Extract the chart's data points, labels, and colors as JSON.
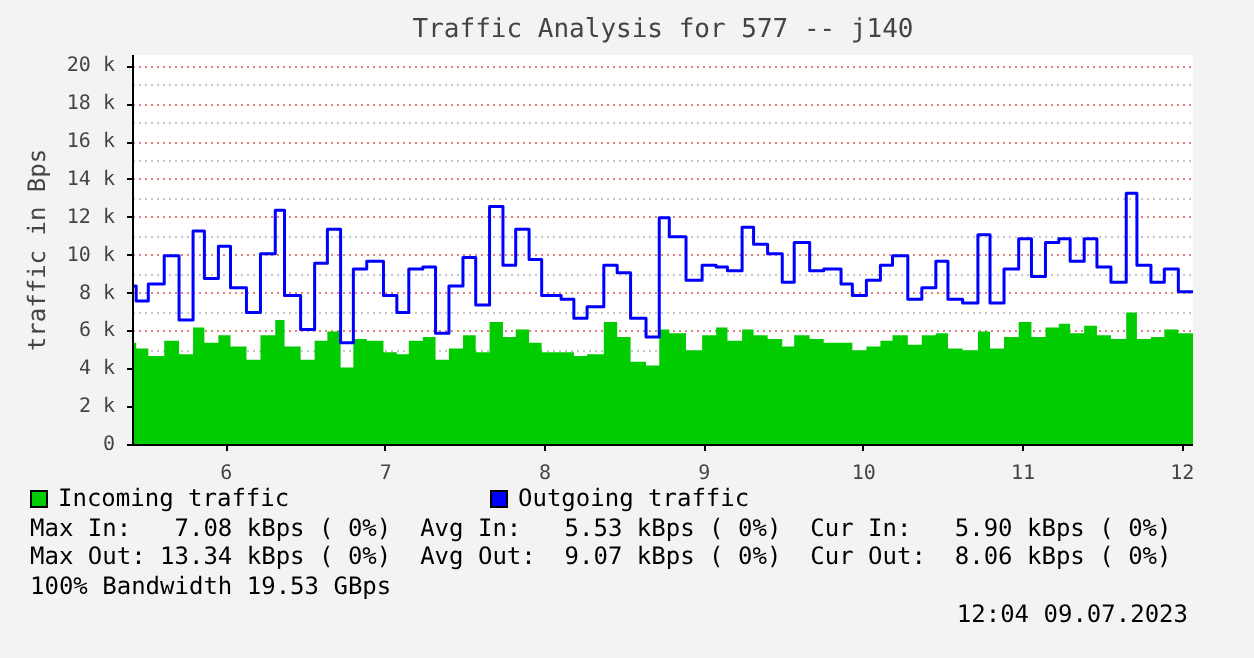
{
  "chart_data": {
    "type": "area",
    "title": "Traffic Analysis for 577 -- j140",
    "ylabel": "traffic in Bps",
    "x": [
      5.414,
      5.434,
      5.51,
      5.61,
      5.703,
      5.791,
      5.862,
      5.95,
      6.026,
      6.126,
      6.214,
      6.307,
      6.365,
      6.466,
      6.554,
      6.634,
      6.717,
      6.797,
      6.881,
      6.986,
      7.07,
      7.145,
      7.233,
      7.313,
      7.397,
      7.485,
      7.565,
      7.652,
      7.736,
      7.816,
      7.9,
      7.979,
      8.101,
      8.181,
      8.264,
      8.369,
      8.453,
      8.537,
      8.634,
      8.717,
      8.78,
      8.885,
      8.986,
      9.074,
      9.145,
      9.237,
      9.309,
      9.397,
      9.489,
      9.564,
      9.661,
      9.749,
      9.858,
      9.929,
      10.017,
      10.105,
      10.181,
      10.277,
      10.365,
      10.453,
      10.529,
      10.621,
      10.717,
      10.793,
      10.881,
      10.973,
      11.053,
      11.141,
      11.225,
      11.296,
      11.384,
      11.464,
      11.552,
      11.648,
      11.715,
      11.803,
      11.887,
      11.975,
      12.067
    ],
    "series": [
      {
        "name": "Incoming traffic",
        "color": "#00cc00",
        "values": [
          5400,
          5100,
          4700,
          5500,
          4800,
          6200,
          5400,
          5800,
          5200,
          4500,
          5800,
          6600,
          5200,
          4500,
          5500,
          6000,
          4100,
          5600,
          5500,
          4900,
          4800,
          5500,
          5700,
          4500,
          5100,
          5800,
          4900,
          6500,
          5700,
          6100,
          5400,
          4900,
          4900,
          4700,
          4800,
          6500,
          5700,
          4400,
          4200,
          6100,
          5900,
          5000,
          5800,
          6200,
          5500,
          6100,
          5800,
          5600,
          5200,
          5800,
          5600,
          5400,
          5400,
          5000,
          5200,
          5500,
          5800,
          5300,
          5800,
          5900,
          5100,
          5000,
          6000,
          5100,
          5700,
          6500,
          5700,
          6200,
          6400,
          5900,
          6300,
          5800,
          5600,
          7000,
          5600,
          5700,
          6100,
          5900,
          5900
        ]
      },
      {
        "name": "Outgoing traffic",
        "type": "step",
        "color": "#0000ff",
        "values": [
          8400,
          7600,
          8500,
          10000,
          6600,
          11300,
          8800,
          10500,
          8300,
          7000,
          10100,
          12400,
          7900,
          6100,
          9600,
          11400,
          5400,
          9300,
          9700,
          7900,
          7000,
          9300,
          9400,
          5900,
          8400,
          9900,
          7400,
          12600,
          9500,
          11400,
          9800,
          7900,
          7700,
          6700,
          7300,
          9500,
          9100,
          6700,
          5700,
          12000,
          11000,
          8700,
          9500,
          9400,
          9200,
          11500,
          10600,
          10100,
          8600,
          10700,
          9200,
          9300,
          8500,
          7900,
          8700,
          9500,
          10000,
          7700,
          8300,
          9700,
          7700,
          7500,
          11100,
          7500,
          9300,
          10900,
          8900,
          10700,
          10900,
          9700,
          10900,
          9400,
          8600,
          13300,
          9500,
          8600,
          9300,
          8100,
          8100
        ]
      }
    ],
    "xlim": [
      5.414,
      12.067
    ],
    "xticks": [
      6,
      7,
      8,
      9,
      10,
      11,
      12
    ],
    "ylim": [
      0,
      20600
    ],
    "yticks": [
      {
        "value": 0,
        "label": "0"
      },
      {
        "value": 2000,
        "label": "2 k"
      },
      {
        "value": 4000,
        "label": "4 k"
      },
      {
        "value": 6000,
        "label": "6 k"
      },
      {
        "value": 8000,
        "label": "8 k"
      },
      {
        "value": 10000,
        "label": "10 k"
      },
      {
        "value": 12000,
        "label": "12 k"
      },
      {
        "value": 14000,
        "label": "14 k"
      },
      {
        "value": 16000,
        "label": "16 k"
      },
      {
        "value": 18000,
        "label": "18 k"
      },
      {
        "value": 20000,
        "label": "20 k"
      }
    ],
    "grid": true,
    "legend": "bottom",
    "annotations": [
      "Max In:   7.08 kBps ( 0%)  Avg In:   5.53 kBps ( 0%)  Cur In:   5.90 kBps ( 0%)",
      "Max Out: 13.34 kBps ( 0%)  Avg Out:  9.07 kBps ( 0%)  Cur Out:  8.06 kBps ( 0%)",
      "100% Bandwidth 19.53 GBps",
      "12:04 09.07.2023"
    ]
  }
}
